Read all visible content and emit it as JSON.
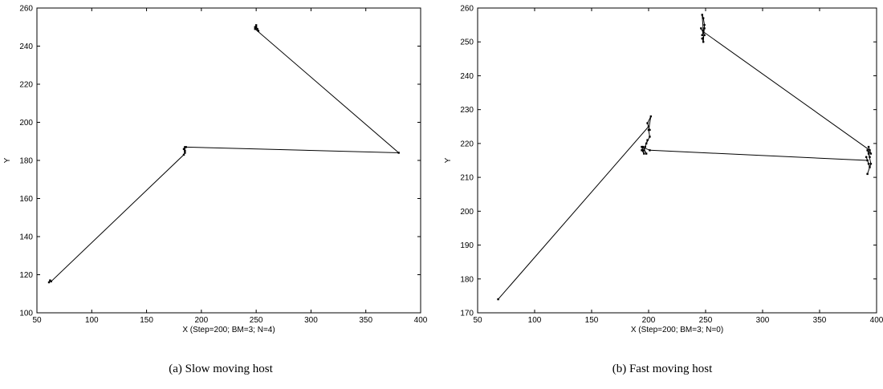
{
  "chart_data": [
    {
      "type": "line",
      "caption": "(a) Slow moving host",
      "xlabel": "X (Step=200; BM=3; N=4)",
      "ylabel": "Y",
      "xlim": [
        50,
        400
      ],
      "ylim": [
        100,
        260
      ],
      "xticks": [
        50,
        100,
        150,
        200,
        250,
        300,
        350,
        400
      ],
      "yticks": [
        100,
        120,
        140,
        160,
        180,
        200,
        220,
        240,
        260
      ],
      "grid": false,
      "series": [
        {
          "x": [
            61,
            62,
            63,
            184,
            185,
            184,
            185,
            185,
            186,
            380,
            249,
            250,
            249,
            251,
            250,
            252,
            251
          ],
          "y": [
            116,
            117,
            116.5,
            183,
            184,
            186,
            185,
            187,
            187,
            184,
            249,
            251,
            250,
            249,
            250,
            248,
            249
          ]
        }
      ]
    },
    {
      "type": "line",
      "caption": "(b) Fast moving host",
      "xlabel": "X (Step=200; BM=3; N=0)",
      "ylabel": "Y",
      "xlim": [
        50,
        400
      ],
      "ylim": [
        170,
        260
      ],
      "xticks": [
        50,
        100,
        150,
        200,
        250,
        300,
        350,
        400
      ],
      "yticks": [
        170,
        180,
        190,
        200,
        210,
        220,
        230,
        240,
        250,
        260
      ],
      "grid": false,
      "series": [
        {
          "x": [
            68,
            200,
            201,
            199,
            202,
            200,
            201,
            198,
            199,
            197,
            196,
            198,
            195,
            194,
            196,
            194,
            201,
            392,
            393,
            391,
            394,
            392,
            395,
            393,
            394,
            392,
            395,
            393,
            394,
            248,
            249,
            247,
            248,
            246,
            249,
            247,
            248,
            249,
            248,
            247,
            248
          ],
          "y": [
            174,
            225,
            224,
            226,
            228,
            224,
            222,
            220,
            221,
            219,
            218,
            217,
            219,
            218,
            217,
            219,
            218,
            215,
            214,
            216,
            213,
            211,
            214,
            217,
            216,
            218,
            217,
            219,
            218,
            253,
            254,
            252,
            253,
            254,
            252,
            251,
            250,
            255,
            257,
            258,
            253
          ]
        }
      ]
    }
  ]
}
